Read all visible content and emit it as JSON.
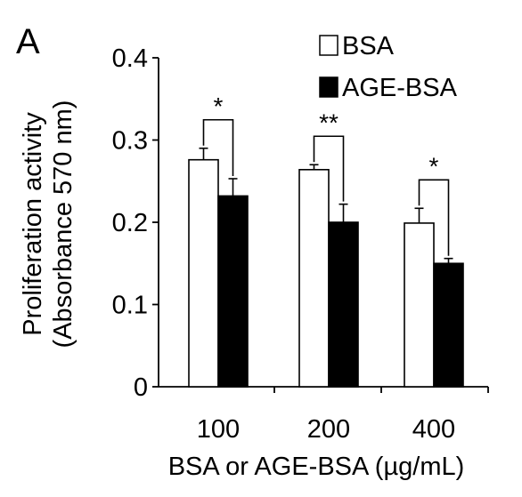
{
  "panel_label": "A",
  "chart_data": {
    "type": "bar",
    "categories": [
      "100",
      "200",
      "400"
    ],
    "series": [
      {
        "name": "BSA",
        "values": [
          0.276,
          0.264,
          0.199
        ],
        "errors": [
          0.014,
          0.006,
          0.018
        ],
        "color": "#ffffff"
      },
      {
        "name": "AGE-BSA",
        "values": [
          0.232,
          0.2,
          0.15
        ],
        "errors": [
          0.021,
          0.022,
          0.006
        ],
        "color": "#000000"
      }
    ],
    "significance": [
      "*",
      "**",
      "*"
    ],
    "ylabel_line1": "Proliferation  activity",
    "ylabel_line2": "(Absorbance 570 nm)",
    "xlabel": "BSA or AGE-BSA (µg/mL)",
    "yticks": [
      "0",
      "0.1",
      "0.2",
      "0.3",
      "0.4"
    ],
    "ylim": [
      0,
      0.4
    ],
    "grid": false,
    "legend_position": "top-right"
  }
}
